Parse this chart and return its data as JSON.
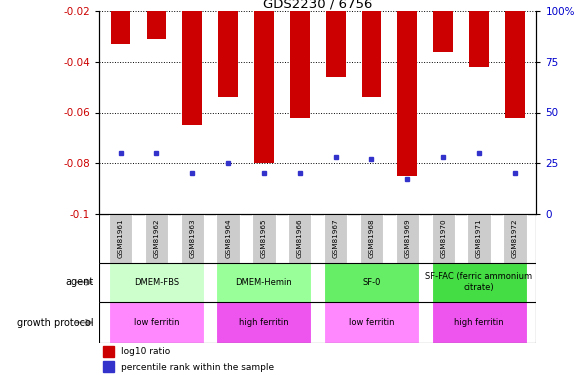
{
  "title": "GDS2230 / 6756",
  "samples": [
    "GSM81961",
    "GSM81962",
    "GSM81963",
    "GSM81964",
    "GSM81965",
    "GSM81966",
    "GSM81967",
    "GSM81968",
    "GSM81969",
    "GSM81970",
    "GSM81971",
    "GSM81972"
  ],
  "log10_ratio": [
    -0.033,
    -0.031,
    -0.065,
    -0.054,
    -0.08,
    -0.062,
    -0.046,
    -0.054,
    -0.085,
    -0.036,
    -0.042,
    -0.062
  ],
  "percentile_rank": [
    30,
    30,
    20,
    25,
    20,
    20,
    28,
    27,
    17,
    28,
    30,
    20
  ],
  "ylim_left": [
    -0.1,
    -0.02
  ],
  "ylim_right": [
    0,
    100
  ],
  "yticks_left": [
    -0.1,
    -0.08,
    -0.06,
    -0.04,
    -0.02
  ],
  "yticks_right": [
    0,
    25,
    50,
    75,
    100
  ],
  "bar_color": "#cc0000",
  "dot_color": "#3333cc",
  "agent_groups": [
    {
      "label": "DMEM-FBS",
      "start": 0,
      "end": 2,
      "color": "#ccffcc"
    },
    {
      "label": "DMEM-Hemin",
      "start": 3,
      "end": 5,
      "color": "#99ff99"
    },
    {
      "label": "SF-0",
      "start": 6,
      "end": 8,
      "color": "#66ee66"
    },
    {
      "label": "SF-FAC (ferric ammonium\ncitrate)",
      "start": 9,
      "end": 11,
      "color": "#44dd44"
    }
  ],
  "growth_groups": [
    {
      "label": "low ferritin",
      "start": 0,
      "end": 2,
      "color": "#ff88ff"
    },
    {
      "label": "high ferritin",
      "start": 3,
      "end": 5,
      "color": "#ee55ee"
    },
    {
      "label": "low ferritin",
      "start": 6,
      "end": 8,
      "color": "#ff88ff"
    },
    {
      "label": "high ferritin",
      "start": 9,
      "end": 11,
      "color": "#ee55ee"
    }
  ],
  "tick_label_color_left": "#cc0000",
  "tick_label_color_right": "#0000cc",
  "sample_label_bg": "#cccccc",
  "bar_width": 0.55
}
